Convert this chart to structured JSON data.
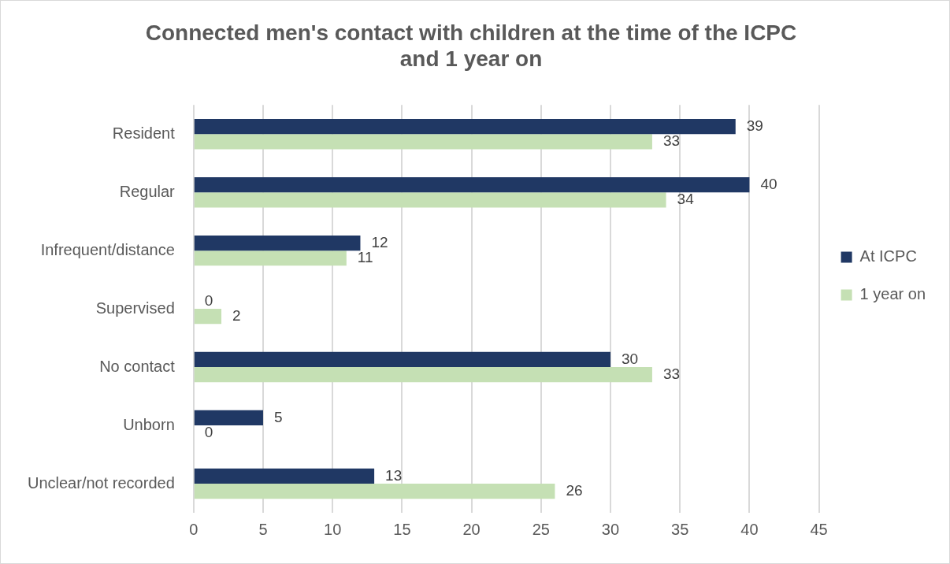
{
  "chart_data": {
    "type": "bar",
    "orientation": "horizontal",
    "title": "Connected men's contact with children at the time of the ICPC\nand 1 year on",
    "categories": [
      "Resident",
      "Regular",
      "Infrequent/distance",
      "Supervised",
      "No contact",
      "Unborn",
      "Unclear/not recorded"
    ],
    "series": [
      {
        "name": "At ICPC",
        "color": "#203864",
        "values": [
          39,
          40,
          12,
          0,
          30,
          5,
          13
        ]
      },
      {
        "name": "1 year on",
        "color": "#c5e0b4",
        "values": [
          33,
          34,
          11,
          2,
          33,
          0,
          26
        ]
      }
    ],
    "xlim": [
      0,
      45
    ],
    "xticks": [
      0,
      5,
      10,
      15,
      20,
      25,
      30,
      35,
      40,
      45
    ],
    "grid": "x",
    "legend": "right",
    "data_labels": true
  }
}
